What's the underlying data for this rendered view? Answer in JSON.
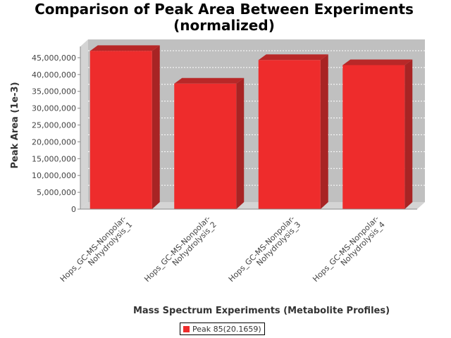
{
  "chart_data": {
    "type": "bar",
    "title_line1": "Comparison of Peak Area Between Experiments",
    "title_line2": "(normalized)",
    "xlabel": "Mass Spectrum Experiments (Metabolite Profiles)",
    "ylabel": "Peak Area (1e-3)",
    "categories": [
      [
        "Hops_GC-MS-Nonpolar-",
        "Nohydrolysis_1"
      ],
      [
        "Hops_GC-MS-Nonpolar-",
        "Nohydrolysis_2"
      ],
      [
        "Hops_GC-MS-Nonpolar-",
        "Nohydrolysis_3"
      ],
      [
        "Hops_GC-MS-Nonpolar-",
        "Nohydrolysis_4"
      ]
    ],
    "series": [
      {
        "name": "Peak 85(20.1659)",
        "values": [
          47000000,
          37300000,
          44300000,
          42800000
        ]
      }
    ],
    "ylim": [
      0,
      47500000
    ],
    "yticks": [
      0,
      5000000,
      10000000,
      15000000,
      20000000,
      25000000,
      30000000,
      35000000,
      40000000,
      45000000
    ],
    "ytick_labels": [
      "0",
      "5,000,000",
      "10,000,000",
      "15,000,000",
      "20,000,000",
      "25,000,000",
      "30,000,000",
      "35,000,000",
      "40,000,000",
      "45,000,000"
    ],
    "grid": true,
    "legend_position": "bottom",
    "colors": {
      "bar_face": "#ee2c2c",
      "bar_top": "#b82828",
      "bar_side": "#a82424",
      "plot_bg": "#c0c0c0",
      "plot_wall": "#d4d4d4"
    }
  }
}
